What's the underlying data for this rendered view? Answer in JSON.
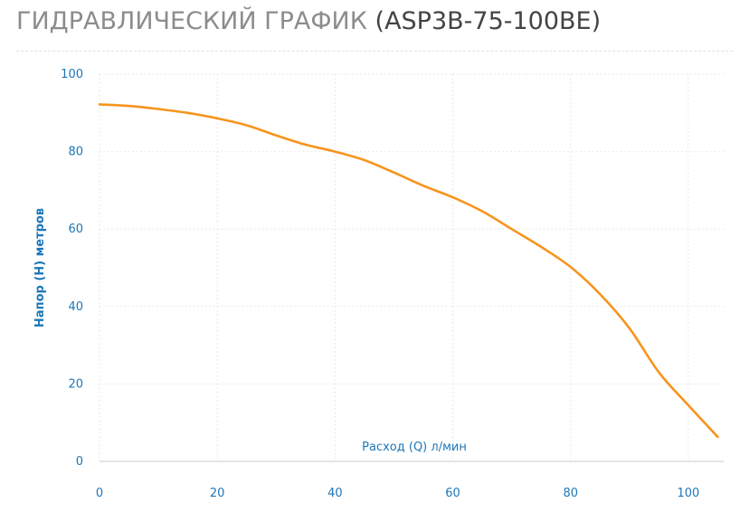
{
  "page": {
    "title_main": "ГИДРАВЛИЧЕСКИЙ ГРАФИК",
    "title_model": "(ASP3B-75-100BE)"
  },
  "chart_data": {
    "type": "line",
    "xlabel": "Расход (Q) л/мин",
    "ylabel": "Напор (H) метров",
    "xlim": [
      0,
      106
    ],
    "ylim": [
      0,
      100
    ],
    "x_ticks": [
      0,
      20,
      40,
      60,
      80,
      100
    ],
    "y_ticks": [
      0,
      20,
      40,
      60,
      80,
      100
    ],
    "grid": true,
    "line_color": "#f7941d",
    "axis_label_color": "#1c76b8",
    "series": [
      {
        "x": [
          0,
          5,
          10,
          15,
          20,
          25,
          30,
          35,
          40,
          45,
          50,
          55,
          60,
          65,
          70,
          75,
          80,
          85,
          90,
          95,
          100,
          105
        ],
        "y": [
          92.2,
          91.8,
          91.0,
          90.0,
          88.6,
          86.8,
          84.2,
          81.8,
          80.0,
          77.8,
          74.6,
          71.2,
          68.2,
          64.6,
          60.0,
          55.4,
          50.2,
          43.2,
          34.4,
          23.0,
          14.5,
          6.3
        ]
      }
    ]
  }
}
